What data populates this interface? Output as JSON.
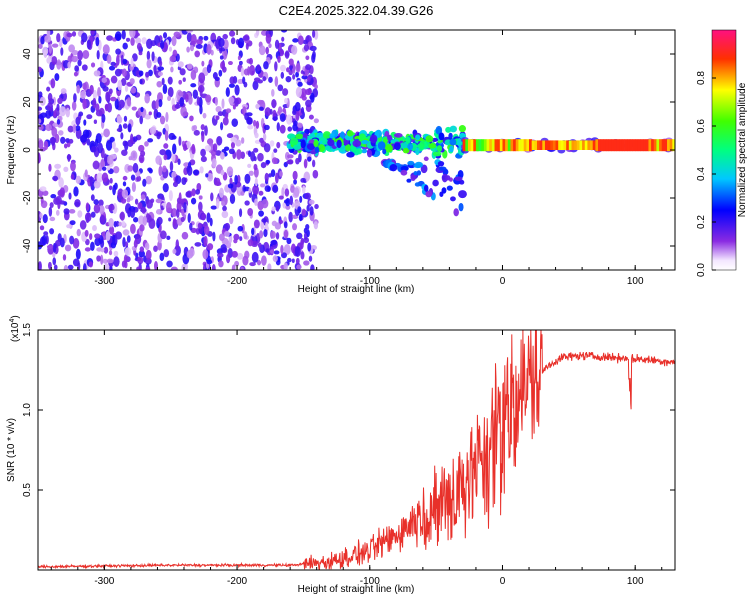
{
  "figure_title": "C2E4.2025.322.04.39.G26",
  "colors": {
    "snr_line": "#e8302a",
    "axis": "#000000"
  },
  "chart_data": [
    {
      "type": "heatmap",
      "title": "C2E4.2025.322.04.39.G26",
      "xlabel": "Height of straight line (km)",
      "ylabel": "Frequency (Hz)",
      "xlim": [
        -350,
        130
      ],
      "ylim": [
        -50,
        50
      ],
      "xticks": [
        -300,
        -200,
        -100,
        0,
        100
      ],
      "yticks": [
        -40,
        -20,
        0,
        20,
        40
      ],
      "colorbar": {
        "label": "Normalized spectral amplitude",
        "range": [
          0,
          1
        ],
        "ticks": [
          "0.0",
          "0.2",
          "0.4",
          "0.6",
          "0.8"
        ],
        "tick_values": [
          0,
          0.2,
          0.4,
          0.6,
          0.8
        ],
        "colormap": "rainbow (white-violet-blue-cyan-green-yellow-red-magenta)"
      },
      "regions": [
        {
          "name": "noise",
          "x_range": [
            -350,
            -160
          ],
          "freq_range": [
            -50,
            50
          ],
          "amplitude": 0.2
        },
        {
          "name": "scattered_signal",
          "x_range": [
            -160,
            -30
          ],
          "freq_center": 5,
          "amplitude": 0.5
        },
        {
          "name": "strong_carrier",
          "x_range": [
            -30,
            130
          ],
          "freq_center": 2,
          "amplitude": 0.95
        }
      ]
    },
    {
      "type": "line",
      "xlabel": "Height of straight line (km)",
      "ylabel": "SNR (10 * v/v)",
      "yscale_label": "(x10",
      "yscale_exp": "4",
      "yscale_close": ")",
      "xlim": [
        -350,
        130
      ],
      "ylim": [
        0,
        1.5
      ],
      "xticks": [
        -300,
        -200,
        -100,
        0,
        100
      ],
      "yticks": [
        "0.5",
        "1.0",
        "1.5"
      ],
      "ytick_values": [
        0.5,
        1.0,
        1.5
      ],
      "series": [
        {
          "name": "SNR",
          "x": [
            -350,
            -250,
            -160,
            -130,
            -100,
            -80,
            -60,
            -45,
            -30,
            -15,
            -5,
            5,
            15,
            25,
            35,
            45,
            60,
            80,
            100,
            115,
            130
          ],
          "y": [
            0.02,
            0.03,
            0.03,
            0.05,
            0.12,
            0.22,
            0.35,
            0.5,
            0.6,
            0.75,
            0.95,
            1.1,
            1.15,
            1.2,
            1.28,
            1.33,
            1.34,
            1.33,
            1.32,
            1.31,
            1.3
          ]
        }
      ]
    }
  ]
}
